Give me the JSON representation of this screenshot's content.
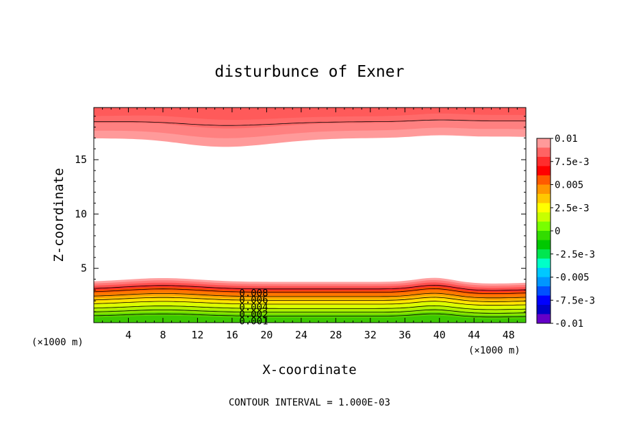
{
  "chart_data": {
    "type": "contour",
    "title": "disturbunce of Exner",
    "xlabel": "X-coordinate",
    "ylabel": "Z-coordinate",
    "x_unit_left": "(×1000 m)",
    "x_unit_right": "(×1000 m)",
    "footer": "CONTOUR INTERVAL = 1.000E-03",
    "xlim": [
      0,
      50
    ],
    "ylim": [
      0,
      19.8
    ],
    "x_ticks": [
      4,
      8,
      12,
      16,
      20,
      24,
      28,
      32,
      36,
      40,
      44,
      48
    ],
    "x_tick_labels": [
      "4",
      "8",
      "12",
      "16",
      "20",
      "24",
      "28",
      "32",
      "36",
      "40",
      "44",
      "48"
    ],
    "y_ticks": [
      5,
      10,
      15
    ],
    "y_tick_labels": [
      "5",
      "10",
      "15"
    ],
    "contour_interval": 0.001,
    "contour_labels": [
      "0.008",
      "0.006",
      "0.004",
      "0.002",
      "0.001"
    ],
    "colorbar": {
      "labels": [
        "0.01",
        "7.5e-3",
        "0.005",
        "2.5e-3",
        "0",
        "-2.5e-3",
        "-0.005",
        "-7.5e-3",
        "-0.01"
      ],
      "colors": [
        "#ff9a9a",
        "#ff6464",
        "#ff2d2d",
        "#ff0000",
        "#ff5a00",
        "#ff9600",
        "#ffc800",
        "#ffff00",
        "#c8ff00",
        "#78ff00",
        "#32dc00",
        "#00c800",
        "#00e650",
        "#00ffc8",
        "#00c8ff",
        "#0096ff",
        "#0050ff",
        "#0000ff",
        "#0000c8",
        "#6400c8"
      ]
    }
  },
  "colors": {
    "white_band": "#ffffff",
    "axis": "#000000"
  }
}
